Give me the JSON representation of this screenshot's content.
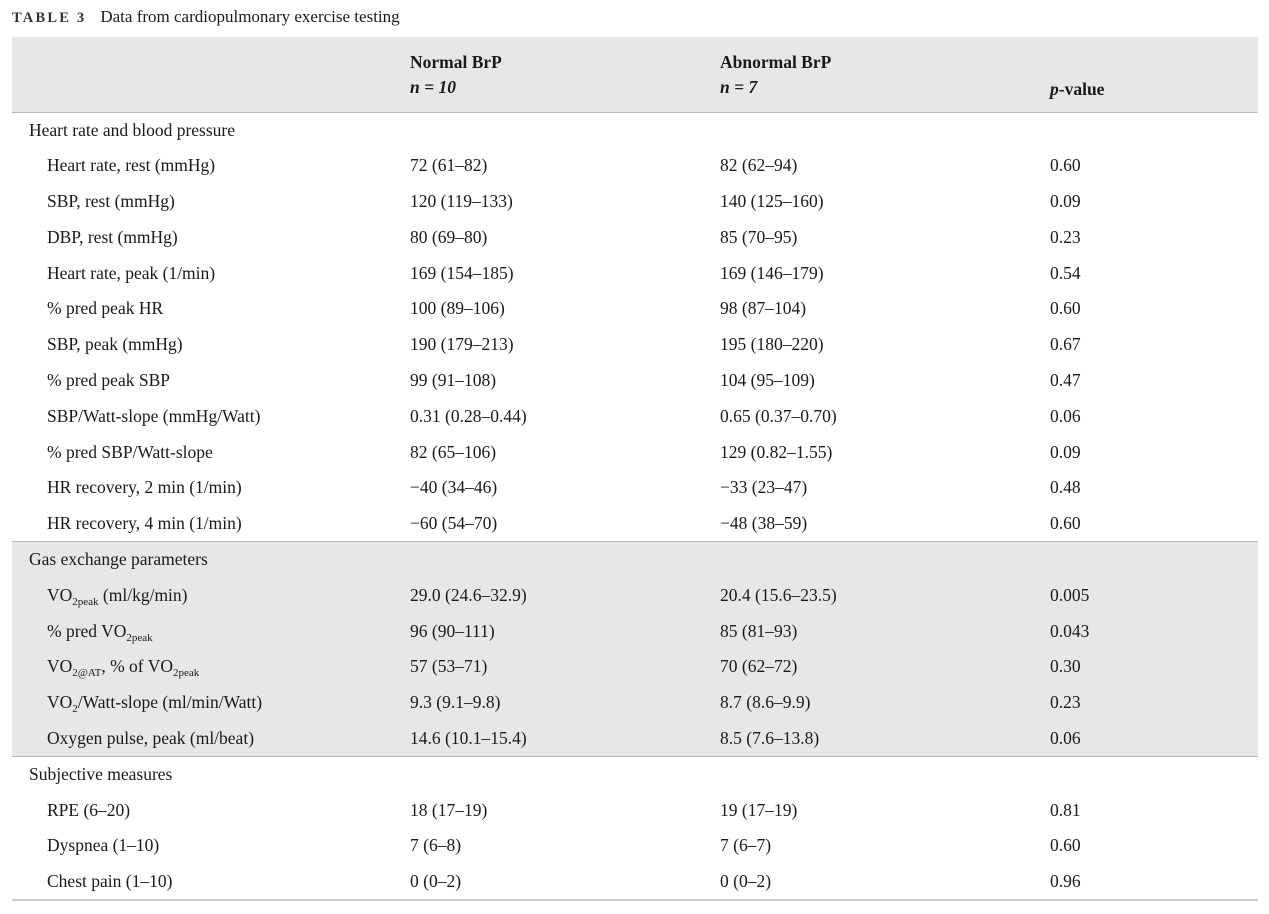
{
  "caption": {
    "label": "TABLE 3",
    "title": "Data from cardiopulmonary exercise testing"
  },
  "header": {
    "col1_title": "Normal BrP",
    "col1_n": "n = 10",
    "col2_title": "Abnormal BrP",
    "col2_n": "n = 7",
    "col3_p": "p",
    "col3_rest": "-value"
  },
  "sections": [
    {
      "title": "Heart rate and blood pressure",
      "rows": [
        {
          "label": "Heart rate, rest (mmHg)",
          "normal": "72 (61–82)",
          "abnormal": "82 (62–94)",
          "p": "0.60"
        },
        {
          "label": "SBP, rest (mmHg)",
          "normal": "120 (119–133)",
          "abnormal": "140 (125–160)",
          "p": "0.09"
        },
        {
          "label": "DBP, rest (mmHg)",
          "normal": "80 (69–80)",
          "abnormal": "85 (70–95)",
          "p": "0.23"
        },
        {
          "label": "Heart rate, peak (1/min)",
          "normal": "169 (154–185)",
          "abnormal": "169 (146–179)",
          "p": "0.54"
        },
        {
          "label": "% pred peak HR",
          "normal": "100 (89–106)",
          "abnormal": "98 (87–104)",
          "p": "0.60"
        },
        {
          "label": "SBP, peak (mmHg)",
          "normal": "190 (179–213)",
          "abnormal": "195 (180–220)",
          "p": "0.67"
        },
        {
          "label": "% pred peak SBP",
          "normal": "99 (91–108)",
          "abnormal": "104 (95–109)",
          "p": "0.47"
        },
        {
          "label": "SBP/Watt-slope (mmHg/Watt)",
          "normal": "0.31 (0.28–0.44)",
          "abnormal": "0.65 (0.37–0.70)",
          "p": "0.06"
        },
        {
          "label": "% pred SBP/Watt-slope",
          "normal": "82 (65–106)",
          "abnormal": "129 (0.82–1.55)",
          "p": "0.09"
        },
        {
          "label": "HR recovery, 2 min (1/min)",
          "normal": "−40 (34–46)",
          "abnormal": "−33 (23–47)",
          "p": "0.48"
        },
        {
          "label": "HR recovery, 4 min (1/min)",
          "normal": "−60 (54–70)",
          "abnormal": "−48 (38–59)",
          "p": "0.60"
        }
      ]
    },
    {
      "title": "Gas exchange parameters",
      "rows": [
        {
          "label_main": "VO",
          "label_sub": "2peak",
          "label_tail": " (ml/kg/min)",
          "normal": "29.0 (24.6–32.9)",
          "abnormal": "20.4 (15.6–23.5)",
          "p": "0.005"
        },
        {
          "label_main": "% pred VO",
          "label_sub": "2peak",
          "normal": "96 (90–111)",
          "abnormal": "85 (81–93)",
          "p": "0.043"
        },
        {
          "label_main": "VO",
          "label_sub": "2@AT",
          "label_mid": ", % of VO",
          "label_sub2": "2peak",
          "normal": "57 (53–71)",
          "abnormal": "70 (62–72)",
          "p": "0.30"
        },
        {
          "label_main": "VO",
          "label_sub": "2",
          "label_tail": "/Watt-slope (ml/min/Watt)",
          "normal": "9.3 (9.1–9.8)",
          "abnormal": "8.7 (8.6–9.9)",
          "p": "0.23"
        },
        {
          "label": "Oxygen pulse, peak (ml/beat)",
          "normal": "14.6 (10.1–15.4)",
          "abnormal": "8.5 (7.6–13.8)",
          "p": "0.06"
        }
      ]
    },
    {
      "title": "Subjective measures",
      "rows": [
        {
          "label": "RPE (6–20)",
          "normal": "18 (17–19)",
          "abnormal": "19 (17–19)",
          "p": "0.81"
        },
        {
          "label": "Dyspnea (1–10)",
          "normal": "7 (6–8)",
          "abnormal": "7 (6–7)",
          "p": "0.60"
        },
        {
          "label": "Chest pain (1–10)",
          "normal": "0 (0–2)",
          "abnormal": "0 (0–2)",
          "p": "0.96"
        }
      ]
    }
  ]
}
